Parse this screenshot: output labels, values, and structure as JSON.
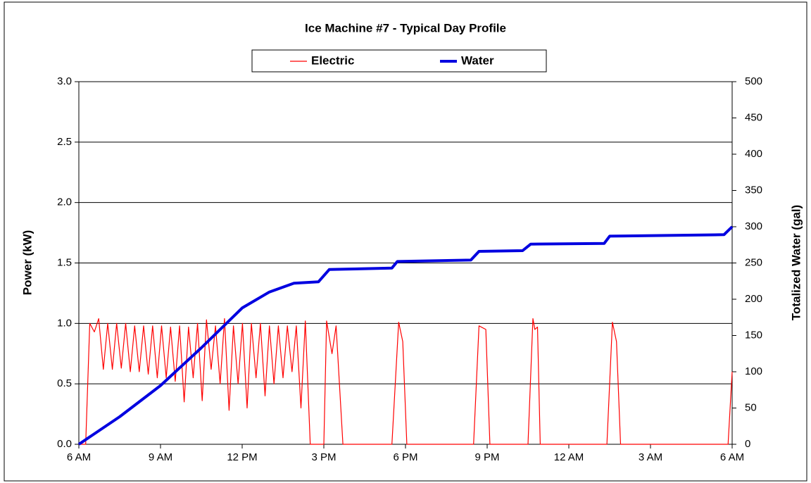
{
  "chart_data": {
    "type": "line",
    "title": "Ice Machine #7 - Typical Day Profile",
    "ylabel": "Power (kW)",
    "y2label": "Totalized Water (gal)",
    "xlim": [
      0,
      24
    ],
    "xticks": [
      {
        "value": 0,
        "label": "6 AM"
      },
      {
        "value": 3,
        "label": "9 AM"
      },
      {
        "value": 6,
        "label": "12 PM"
      },
      {
        "value": 9,
        "label": "3 PM"
      },
      {
        "value": 12,
        "label": "6 PM"
      },
      {
        "value": 15,
        "label": "9 PM"
      },
      {
        "value": 18,
        "label": "12 AM"
      },
      {
        "value": 21,
        "label": "3 AM"
      },
      {
        "value": 24,
        "label": "6 AM"
      }
    ],
    "ylim": [
      0,
      3
    ],
    "yticks": [
      {
        "value": 0,
        "label": "0.0"
      },
      0.5,
      {
        "value": 1,
        "label": "1.0"
      },
      1.5,
      {
        "value": 2,
        "label": "2.0"
      },
      2.5,
      {
        "value": 3,
        "label": "3.0"
      }
    ],
    "y2lim": [
      0,
      500
    ],
    "y2ticks": [
      0,
      50,
      100,
      150,
      200,
      250,
      300,
      350,
      400,
      450,
      500
    ],
    "grid": true,
    "legend": "top",
    "series": [
      {
        "name": "Electric",
        "color": "#ff0000",
        "x": [
          0,
          0.25,
          0.4,
          0.57,
          0.73,
          0.9,
          1.06,
          1.23,
          1.39,
          1.56,
          1.72,
          1.89,
          2.05,
          2.22,
          2.38,
          2.55,
          2.71,
          2.88,
          3.04,
          3.21,
          3.37,
          3.54,
          3.7,
          3.87,
          4.03,
          4.2,
          4.36,
          4.53,
          4.69,
          4.86,
          5.02,
          5.19,
          5.35,
          5.52,
          5.68,
          5.85,
          6.01,
          6.18,
          6.34,
          6.51,
          6.67,
          6.84,
          7.0,
          7.17,
          7.33,
          7.5,
          7.66,
          7.83,
          7.99,
          8.16,
          8.32,
          8.5,
          9.0,
          9.1,
          9.3,
          9.45,
          9.7,
          11.5,
          11.75,
          11.9,
          12.05,
          14.5,
          14.7,
          14.95,
          15.1,
          16.5,
          16.68,
          16.75,
          16.85,
          16.95,
          19.4,
          19.6,
          19.75,
          19.9,
          23.85,
          24
        ],
        "values": [
          0,
          0,
          1.0,
          0.93,
          1.04,
          0.62,
          1.0,
          0.62,
          1.0,
          0.63,
          1.0,
          0.6,
          0.98,
          0.6,
          0.98,
          0.58,
          0.98,
          0.55,
          0.98,
          0.55,
          0.97,
          0.52,
          0.98,
          0.35,
          0.97,
          0.55,
          1.0,
          0.36,
          1.03,
          0.62,
          0.98,
          0.5,
          1.04,
          0.28,
          0.98,
          0.5,
          1.0,
          0.3,
          1.0,
          0.55,
          1.0,
          0.4,
          0.98,
          0.5,
          0.98,
          0.55,
          0.98,
          0.6,
          0.98,
          0.3,
          1.02,
          0,
          0,
          1.02,
          0.75,
          0.98,
          0,
          0,
          1.01,
          0.85,
          0,
          0,
          0.98,
          0.95,
          0,
          0,
          1.04,
          0.95,
          0.97,
          0,
          0,
          1.01,
          0.85,
          0,
          0,
          0.6
        ]
      },
      {
        "name": "Water",
        "color": "#0000e0",
        "axis": "y2",
        "x": [
          0,
          1.5,
          3,
          4.5,
          6,
          7,
          7.9,
          8.8,
          9.2,
          11.5,
          11.7,
          14.4,
          14.7,
          16.3,
          16.6,
          19.3,
          19.5,
          23.7,
          24
        ],
        "values": [
          0,
          38,
          81,
          133,
          188,
          210,
          222,
          224,
          241,
          243,
          252,
          254,
          266,
          267,
          276,
          277,
          287,
          289,
          300
        ]
      }
    ]
  }
}
